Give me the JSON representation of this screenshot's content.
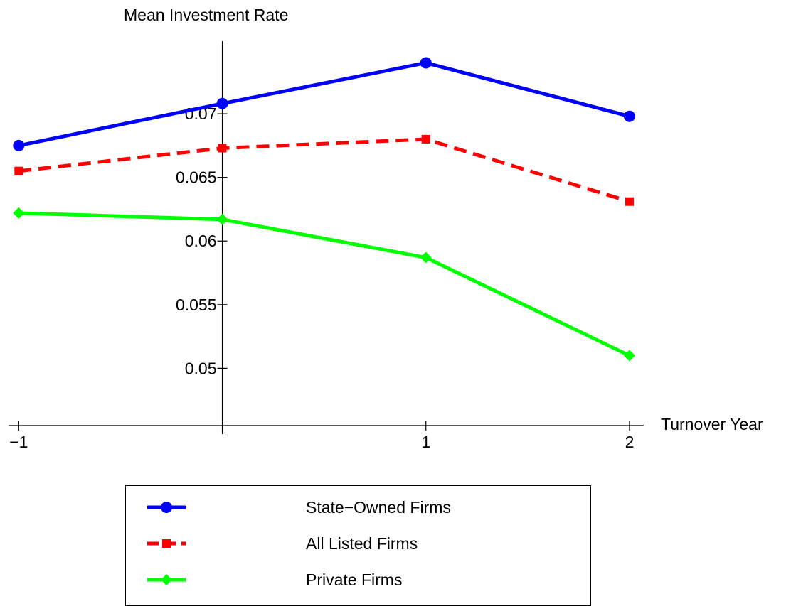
{
  "chart_data": {
    "type": "line",
    "ylabel": "Mean Investment Rate",
    "xlabel": "Turnover Year",
    "x": [
      -1,
      0,
      1,
      2
    ],
    "x_tick_labels": [
      "−1",
      "1",
      "2"
    ],
    "x_tick_values": [
      -1,
      1,
      2
    ],
    "y_ticks": [
      0.05,
      0.055,
      0.06,
      0.065,
      0.07
    ],
    "y_tick_labels": [
      "0.05",
      "0.055",
      "0.06",
      "0.065",
      "0.07"
    ],
    "xlim": [
      -1.05,
      2.07
    ],
    "ylim": [
      0.0455,
      0.0757
    ],
    "grid": false,
    "legend_position": "bottom",
    "series": [
      {
        "name": "State−Owned Firms",
        "values": [
          0.0675,
          0.0708,
          0.074,
          0.0698
        ],
        "color": "#0000ff",
        "marker": "circle",
        "dash": "solid"
      },
      {
        "name": "All Listed Firms",
        "values": [
          0.0655,
          0.0673,
          0.068,
          0.0631
        ],
        "color": "#ff0000",
        "marker": "square",
        "dash": "dashed"
      },
      {
        "name": "Private Firms",
        "values": [
          0.0622,
          0.0617,
          0.0587,
          0.051
        ],
        "color": "#00ff00",
        "marker": "diamond",
        "dash": "solid"
      }
    ]
  }
}
